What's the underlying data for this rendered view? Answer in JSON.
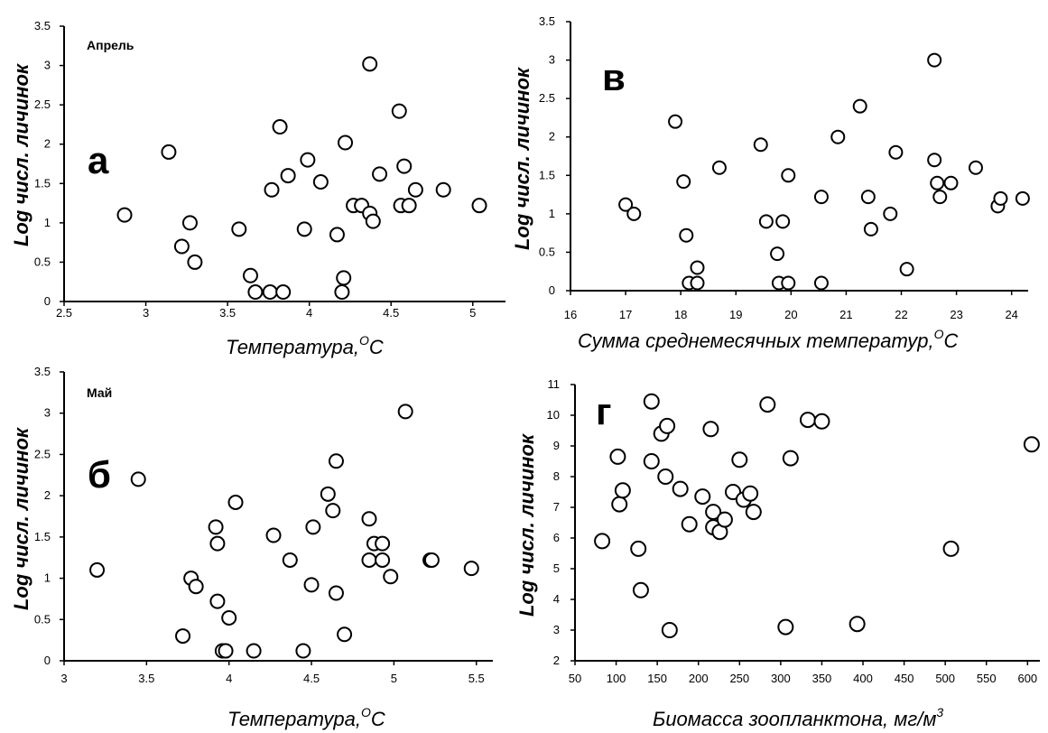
{
  "chart_data": [
    {
      "type": "scatter",
      "panel_label": "а",
      "month_label": "Апрель",
      "xlabel": "Температура,",
      "xlabel_sup": "O",
      "xlabel_unit": "C",
      "ylabel": "Log числ. личинок",
      "xlim": [
        2.5,
        5.2
      ],
      "ylim": [
        0,
        3.5
      ],
      "xticks": [
        2.5,
        3,
        3.5,
        4,
        4.5,
        5
      ],
      "xtick_labels": [
        "2.5",
        "3",
        "3.5",
        "4",
        "4.5",
        "5"
      ],
      "yticks": [
        0,
        0.5,
        1,
        1.5,
        2,
        2.5,
        3,
        3.5
      ],
      "ytick_labels": [
        "0",
        "0.5",
        "1",
        "1.5",
        "2",
        "2.5",
        "3",
        "3.5"
      ],
      "points": [
        [
          2.87,
          1.1
        ],
        [
          3.14,
          1.9
        ],
        [
          3.22,
          0.7
        ],
        [
          3.27,
          1.0
        ],
        [
          3.3,
          0.5
        ],
        [
          3.57,
          0.92
        ],
        [
          3.64,
          0.33
        ],
        [
          3.67,
          0.12
        ],
        [
          3.77,
          1.42
        ],
        [
          3.82,
          2.22
        ],
        [
          3.87,
          1.6
        ],
        [
          3.76,
          0.12
        ],
        [
          3.84,
          0.12
        ],
        [
          3.97,
          0.92
        ],
        [
          3.99,
          1.8
        ],
        [
          4.07,
          1.52
        ],
        [
          4.17,
          0.85
        ],
        [
          4.22,
          2.02
        ],
        [
          4.27,
          1.22
        ],
        [
          4.32,
          1.22
        ],
        [
          4.37,
          1.12
        ],
        [
          4.37,
          3.02
        ],
        [
          4.39,
          1.02
        ],
        [
          4.43,
          1.62
        ],
        [
          4.55,
          2.42
        ],
        [
          4.56,
          1.22
        ],
        [
          4.58,
          1.72
        ],
        [
          4.61,
          1.22
        ],
        [
          4.65,
          1.42
        ],
        [
          4.82,
          1.42
        ],
        [
          5.04,
          1.22
        ],
        [
          4.21,
          0.3
        ],
        [
          4.2,
          0.12
        ]
      ]
    },
    {
      "type": "scatter",
      "panel_label": "в",
      "xlabel": "Сумма среднемесячных температур,",
      "xlabel_sup": "O",
      "xlabel_unit": "C",
      "ylabel": "Log числ. личинок",
      "xlim": [
        16,
        24.3
      ],
      "ylim": [
        0,
        3.5
      ],
      "xticks": [
        16,
        17,
        18,
        19,
        20,
        21,
        22,
        23,
        24
      ],
      "xtick_labels": [
        "16",
        "17",
        "18",
        "19",
        "20",
        "21",
        "22",
        "23",
        "24"
      ],
      "yticks": [
        0,
        0.5,
        1,
        1.5,
        2,
        2.5,
        3,
        3.5
      ],
      "ytick_labels": [
        "0",
        "0.5",
        "1",
        "1.5",
        "2",
        "2.5",
        "3",
        "3.5"
      ],
      "points": [
        [
          17.0,
          1.12
        ],
        [
          17.15,
          1.0
        ],
        [
          17.9,
          2.2
        ],
        [
          18.05,
          1.42
        ],
        [
          18.1,
          0.72
        ],
        [
          18.15,
          0.1
        ],
        [
          18.3,
          0.1
        ],
        [
          18.3,
          0.3
        ],
        [
          18.7,
          1.6
        ],
        [
          19.45,
          1.9
        ],
        [
          19.55,
          0.9
        ],
        [
          19.75,
          0.48
        ],
        [
          19.78,
          0.1
        ],
        [
          19.85,
          0.9
        ],
        [
          19.95,
          1.5
        ],
        [
          19.95,
          0.1
        ],
        [
          20.55,
          1.22
        ],
        [
          20.55,
          0.1
        ],
        [
          20.85,
          2.0
        ],
        [
          21.25,
          2.4
        ],
        [
          21.4,
          1.22
        ],
        [
          21.45,
          0.8
        ],
        [
          21.8,
          1.0
        ],
        [
          21.9,
          1.8
        ],
        [
          22.1,
          0.28
        ],
        [
          22.6,
          3.0
        ],
        [
          22.6,
          1.7
        ],
        [
          22.65,
          1.4
        ],
        [
          22.7,
          1.22
        ],
        [
          22.9,
          1.4
        ],
        [
          23.35,
          1.6
        ],
        [
          23.75,
          1.1
        ],
        [
          23.8,
          1.2
        ],
        [
          24.2,
          1.2
        ]
      ]
    },
    {
      "type": "scatter",
      "panel_label": "б",
      "month_label": "Май",
      "xlabel": "Температура,",
      "xlabel_sup": "O",
      "xlabel_unit": "C",
      "ylabel": "Log числ. личинок",
      "xlim": [
        3,
        5.6
      ],
      "ylim": [
        0,
        3.5
      ],
      "xticks": [
        3,
        3.5,
        4,
        4.5,
        5,
        5.5
      ],
      "xtick_labels": [
        "3",
        "3.5",
        "4",
        "4.5",
        "5",
        "5.5"
      ],
      "yticks": [
        0,
        0.5,
        1,
        1.5,
        2,
        2.5,
        3,
        3.5
      ],
      "ytick_labels": [
        "0",
        "0.5",
        "1",
        "1.5",
        "2",
        "2.5",
        "3",
        "3.5"
      ],
      "points": [
        [
          3.2,
          1.1
        ],
        [
          3.45,
          2.2
        ],
        [
          3.72,
          0.3
        ],
        [
          3.77,
          1.0
        ],
        [
          3.8,
          0.9
        ],
        [
          3.92,
          1.62
        ],
        [
          3.93,
          1.42
        ],
        [
          3.93,
          0.72
        ],
        [
          3.96,
          0.12
        ],
        [
          3.98,
          0.12
        ],
        [
          4.0,
          0.52
        ],
        [
          4.04,
          1.92
        ],
        [
          4.15,
          0.12
        ],
        [
          4.27,
          1.52
        ],
        [
          4.37,
          1.22
        ],
        [
          4.45,
          0.12
        ],
        [
          4.5,
          0.92
        ],
        [
          4.51,
          1.62
        ],
        [
          4.6,
          2.02
        ],
        [
          4.63,
          1.82
        ],
        [
          4.65,
          2.42
        ],
        [
          4.65,
          0.82
        ],
        [
          4.7,
          0.32
        ],
        [
          4.85,
          1.72
        ],
        [
          4.85,
          1.22
        ],
        [
          4.88,
          1.42
        ],
        [
          4.93,
          1.42
        ],
        [
          4.93,
          1.22
        ],
        [
          4.98,
          1.02
        ],
        [
          5.07,
          3.02
        ],
        [
          5.22,
          1.22
        ],
        [
          5.23,
          1.22
        ],
        [
          5.47,
          1.12
        ]
      ]
    },
    {
      "type": "scatter",
      "panel_label": "г",
      "xlabel": "Биомасса зоопланктона, мг/м",
      "xlabel_sup": "3",
      "xlabel_unit": "",
      "ylabel": "Log числ. личинок",
      "xlim": [
        50,
        615
      ],
      "ylim": [
        2,
        11
      ],
      "xticks": [
        50,
        100,
        150,
        200,
        250,
        300,
        350,
        400,
        450,
        500,
        550,
        600
      ],
      "xtick_labels": [
        "50",
        "100",
        "150",
        "200",
        "250",
        "300",
        "350",
        "400",
        "450",
        "500",
        "550",
        "600"
      ],
      "yticks": [
        2,
        3,
        4,
        5,
        6,
        7,
        8,
        9,
        10,
        11
      ],
      "ytick_labels": [
        "2",
        "3",
        "4",
        "5",
        "6",
        "7",
        "8",
        "9",
        "10",
        "11"
      ],
      "points": [
        [
          83,
          5.9
        ],
        [
          102,
          8.65
        ],
        [
          104,
          7.1
        ],
        [
          108,
          7.55
        ],
        [
          127,
          5.65
        ],
        [
          130,
          4.3
        ],
        [
          143,
          8.5
        ],
        [
          143,
          10.45
        ],
        [
          155,
          9.4
        ],
        [
          160,
          8.0
        ],
        [
          162,
          9.65
        ],
        [
          165,
          3.0
        ],
        [
          178,
          7.6
        ],
        [
          189,
          6.45
        ],
        [
          205,
          7.35
        ],
        [
          215,
          9.55
        ],
        [
          218,
          6.85
        ],
        [
          218,
          6.35
        ],
        [
          226,
          6.2
        ],
        [
          232,
          6.6
        ],
        [
          242,
          7.5
        ],
        [
          250,
          8.55
        ],
        [
          255,
          7.25
        ],
        [
          263,
          7.45
        ],
        [
          267,
          6.85
        ],
        [
          284,
          10.35
        ],
        [
          306,
          3.1
        ],
        [
          312,
          8.6
        ],
        [
          333,
          9.85
        ],
        [
          350,
          9.8
        ],
        [
          393,
          3.2
        ],
        [
          507,
          5.65
        ],
        [
          605,
          9.05
        ]
      ]
    }
  ]
}
